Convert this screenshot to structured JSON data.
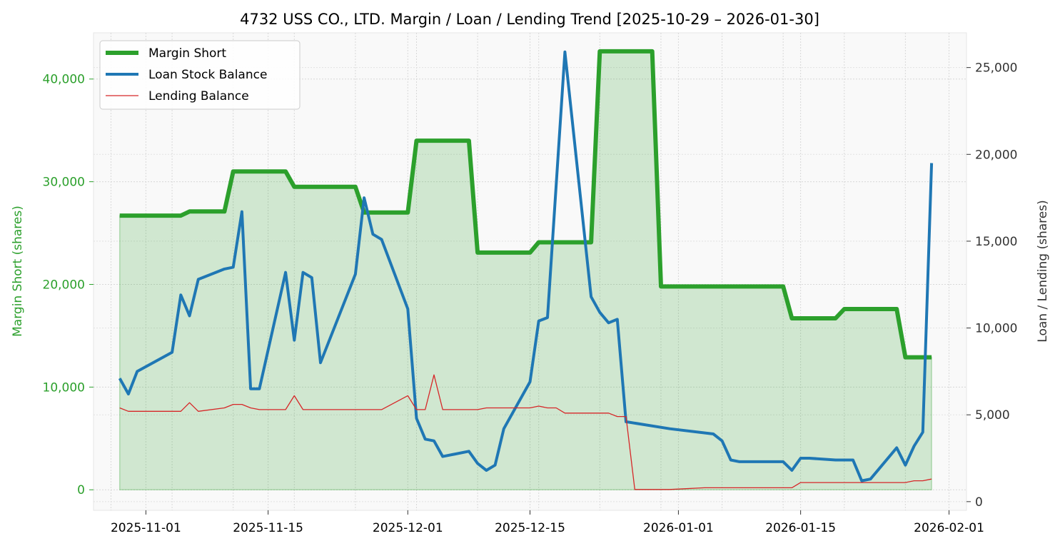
{
  "chart_data": {
    "type": "line",
    "title": "4732 USS CO., LTD. Margin / Loan / Lending Trend [2025-10-29 – 2026-01-30]",
    "left_axis": {
      "label": "Margin Short (shares)",
      "range": [
        -2000,
        44500
      ],
      "ticks": [
        0,
        10000,
        20000,
        30000,
        40000
      ],
      "tick_labels": [
        "0",
        "10,000",
        "20,000",
        "30,000",
        "40,000"
      ]
    },
    "right_axis": {
      "label": "Loan / Lending (shares)",
      "range": [
        -500,
        27000
      ],
      "ticks": [
        0,
        5000,
        10000,
        15000,
        20000,
        25000
      ],
      "tick_labels": [
        "0",
        "5,000",
        "10,000",
        "15,000",
        "20,000",
        "25,000"
      ]
    },
    "x_axis": {
      "range": [
        "2025-10-26",
        "2026-02-03"
      ],
      "ticks": [
        "2025-11-01",
        "2025-11-15",
        "2025-12-01",
        "2025-12-15",
        "2026-01-01",
        "2026-01-15",
        "2026-02-01"
      ],
      "tick_labels": [
        "2025-11-01",
        "2025-11-15",
        "2025-12-01",
        "2025-12-15",
        "2026-01-01",
        "2026-01-15",
        "2026-02-01"
      ]
    },
    "grid": true,
    "legend": {
      "position": "top-left"
    },
    "colors": {
      "margin": "#2ca02c",
      "loan": "#1f77b4",
      "lending": "#d62728",
      "fill": "#2ca02c",
      "left_axis_text": "#2ca02c",
      "right_axis_text": "#333333"
    },
    "series": [
      {
        "key": "margin",
        "name": "Margin Short",
        "axis": "left",
        "style": "step-fill",
        "points": [
          [
            "2025-10-29",
            26700
          ],
          [
            "2025-11-05",
            26700
          ],
          [
            "2025-11-06",
            27100
          ],
          [
            "2025-11-10",
            27100
          ],
          [
            "2025-11-11",
            31000
          ],
          [
            "2025-11-17",
            31000
          ],
          [
            "2025-11-18",
            29500
          ],
          [
            "2025-11-25",
            29500
          ],
          [
            "2025-11-26",
            27000
          ],
          [
            "2025-12-01",
            27000
          ],
          [
            "2025-12-02",
            34000
          ],
          [
            "2025-12-08",
            34000
          ],
          [
            "2025-12-09",
            23100
          ],
          [
            "2025-12-15",
            23100
          ],
          [
            "2025-12-16",
            24100
          ],
          [
            "2025-12-22",
            24100
          ],
          [
            "2025-12-23",
            42700
          ],
          [
            "2025-12-29",
            42700
          ],
          [
            "2025-12-30",
            19800
          ],
          [
            "2026-01-13",
            19800
          ],
          [
            "2026-01-14",
            16700
          ],
          [
            "2026-01-19",
            16700
          ],
          [
            "2026-01-20",
            17600
          ],
          [
            "2026-01-26",
            17600
          ],
          [
            "2026-01-27",
            12900
          ],
          [
            "2026-01-30",
            12900
          ]
        ]
      },
      {
        "key": "loan",
        "name": "Loan Stock Balance",
        "axis": "right",
        "style": "line",
        "points": [
          [
            "2025-10-29",
            7100
          ],
          [
            "2025-10-30",
            6200
          ],
          [
            "2025-10-31",
            7500
          ],
          [
            "2025-11-04",
            8600
          ],
          [
            "2025-11-05",
            11900
          ],
          [
            "2025-11-06",
            10700
          ],
          [
            "2025-11-07",
            12800
          ],
          [
            "2025-11-10",
            13400
          ],
          [
            "2025-11-11",
            13500
          ],
          [
            "2025-11-12",
            16700
          ],
          [
            "2025-11-13",
            6500
          ],
          [
            "2025-11-14",
            6500
          ],
          [
            "2025-11-17",
            13200
          ],
          [
            "2025-11-18",
            9300
          ],
          [
            "2025-11-19",
            13200
          ],
          [
            "2025-11-20",
            12900
          ],
          [
            "2025-11-21",
            8000
          ],
          [
            "2025-11-25",
            13100
          ],
          [
            "2025-11-26",
            17500
          ],
          [
            "2025-11-27",
            15400
          ],
          [
            "2025-11-28",
            15100
          ],
          [
            "2025-12-01",
            11100
          ],
          [
            "2025-12-02",
            4800
          ],
          [
            "2025-12-03",
            3600
          ],
          [
            "2025-12-04",
            3500
          ],
          [
            "2025-12-05",
            2600
          ],
          [
            "2025-12-08",
            2900
          ],
          [
            "2025-12-09",
            2200
          ],
          [
            "2025-12-10",
            1800
          ],
          [
            "2025-12-11",
            2100
          ],
          [
            "2025-12-12",
            4200
          ],
          [
            "2025-12-15",
            6900
          ],
          [
            "2025-12-16",
            10400
          ],
          [
            "2025-12-17",
            10600
          ],
          [
            "2025-12-19",
            25900
          ],
          [
            "2025-12-22",
            11800
          ],
          [
            "2025-12-23",
            10900
          ],
          [
            "2025-12-24",
            10300
          ],
          [
            "2025-12-25",
            10500
          ],
          [
            "2025-12-26",
            4600
          ],
          [
            "2025-12-31",
            4200
          ],
          [
            "2026-01-05",
            3900
          ],
          [
            "2026-01-06",
            3500
          ],
          [
            "2026-01-07",
            2400
          ],
          [
            "2026-01-08",
            2300
          ],
          [
            "2026-01-13",
            2300
          ],
          [
            "2026-01-14",
            1800
          ],
          [
            "2026-01-15",
            2500
          ],
          [
            "2026-01-16",
            2500
          ],
          [
            "2026-01-19",
            2400
          ],
          [
            "2026-01-21",
            2400
          ],
          [
            "2026-01-22",
            1200
          ],
          [
            "2026-01-23",
            1300
          ],
          [
            "2026-01-26",
            3100
          ],
          [
            "2026-01-27",
            2100
          ],
          [
            "2026-01-28",
            3200
          ],
          [
            "2026-01-29",
            4000
          ],
          [
            "2026-01-30",
            19500
          ]
        ]
      },
      {
        "key": "lending",
        "name": "Lending Balance",
        "axis": "right",
        "style": "line",
        "points": [
          [
            "2025-10-29",
            5400
          ],
          [
            "2025-10-30",
            5200
          ],
          [
            "2025-11-05",
            5200
          ],
          [
            "2025-11-06",
            5700
          ],
          [
            "2025-11-07",
            5200
          ],
          [
            "2025-11-10",
            5400
          ],
          [
            "2025-11-11",
            5600
          ],
          [
            "2025-11-12",
            5600
          ],
          [
            "2025-11-13",
            5400
          ],
          [
            "2025-11-14",
            5300
          ],
          [
            "2025-11-17",
            5300
          ],
          [
            "2025-11-18",
            6100
          ],
          [
            "2025-11-19",
            5300
          ],
          [
            "2025-11-28",
            5300
          ],
          [
            "2025-12-01",
            6100
          ],
          [
            "2025-12-02",
            5300
          ],
          [
            "2025-12-03",
            5300
          ],
          [
            "2025-12-04",
            7300
          ],
          [
            "2025-12-05",
            5300
          ],
          [
            "2025-12-09",
            5300
          ],
          [
            "2025-12-10",
            5400
          ],
          [
            "2025-12-15",
            5400
          ],
          [
            "2025-12-16",
            5500
          ],
          [
            "2025-12-17",
            5400
          ],
          [
            "2025-12-18",
            5400
          ],
          [
            "2025-12-19",
            5100
          ],
          [
            "2025-12-24",
            5100
          ],
          [
            "2025-12-25",
            4900
          ],
          [
            "2025-12-26",
            4900
          ],
          [
            "2025-12-27",
            700
          ],
          [
            "2025-12-31",
            700
          ],
          [
            "2026-01-04",
            800
          ],
          [
            "2026-01-14",
            800
          ],
          [
            "2026-01-15",
            1100
          ],
          [
            "2026-01-27",
            1100
          ],
          [
            "2026-01-28",
            1200
          ],
          [
            "2026-01-29",
            1200
          ],
          [
            "2026-01-30",
            1300
          ]
        ]
      }
    ]
  }
}
